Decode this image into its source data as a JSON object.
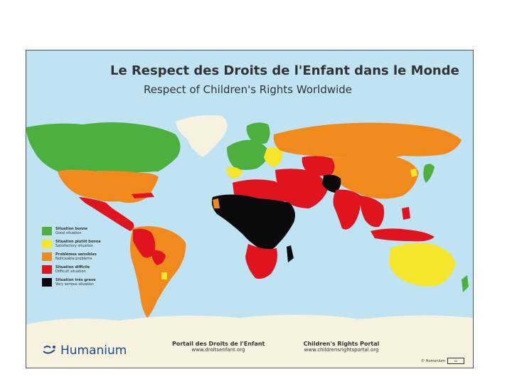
{
  "title": {
    "fr": "Le Respect des Droits de l'Enfant dans le Monde",
    "en": "Respect of Children's Rights Worldwide"
  },
  "colors": {
    "ocean": "#bfe3f2",
    "good": "#4caf3e",
    "satisfactory": "#f5e52b",
    "noticeable": "#f08a1c",
    "difficult": "#e0141e",
    "very_serious": "#0a0a0a",
    "neutral_land": "#f6f2df",
    "logo_blue": "#1d4c8c"
  },
  "legend": [
    {
      "fr": "Situation bonne",
      "en": "Good situation",
      "color": "#4caf3e"
    },
    {
      "fr": "Situation plutôt bonne",
      "en": "Satisfactory situation",
      "color": "#f5e52b"
    },
    {
      "fr": "Problèmes sensibles",
      "en": "Noticeable problems",
      "color": "#f08a1c"
    },
    {
      "fr": "Situation difficile",
      "en": "Difficult situation",
      "color": "#e0141e"
    },
    {
      "fr": "Situation très grave",
      "en": "Very serious situation",
      "color": "#0a0a0a"
    }
  ],
  "footer": {
    "logo": "Humanium",
    "portal_fr": {
      "title": "Portail des Droits de l'Enfant",
      "url": "www.droitsenfant.org"
    },
    "portal_en": {
      "title": "Children's Rights Portal",
      "url": "www.childrensrightsportal.org"
    },
    "copyright": "© Humanium",
    "license_icon": "cc-by-nc-nd-icon"
  }
}
